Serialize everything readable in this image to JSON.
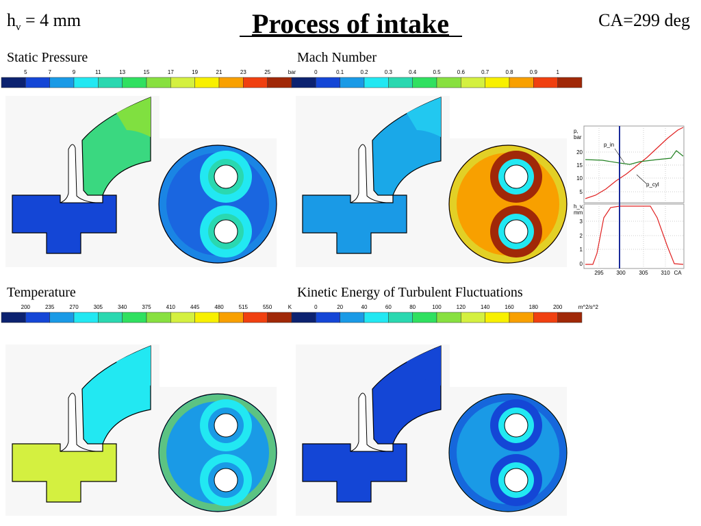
{
  "header": {
    "valve_lift_symbol": "h",
    "valve_lift_subscript": "v",
    "valve_lift_value": " = 4 mm",
    "title": "Process of intake",
    "crank_angle": "CA=299 deg"
  },
  "colorbar_colors": [
    "#0c2270",
    "#1446d6",
    "#1a9ae6",
    "#22e8f2",
    "#2ad8b0",
    "#30e060",
    "#88e040",
    "#d4f040",
    "#f8f000",
    "#f8a000",
    "#f04010",
    "#a02808"
  ],
  "panels": [
    {
      "title": "Static Pressure",
      "ticks": [
        "5",
        "7",
        "9",
        "11",
        "13",
        "15",
        "17",
        "19",
        "21",
        "23",
        "25"
      ],
      "unit": "bar"
    },
    {
      "title": "Mach Number",
      "ticks": [
        "0",
        "0.1",
        "0.2",
        "0.3",
        "0.4",
        "0.5",
        "0.6",
        "0.7",
        "0.8",
        "0.9",
        "1"
      ]
    },
    {
      "title": "Temperature",
      "ticks": [
        "200",
        "235",
        "270",
        "305",
        "340",
        "375",
        "410",
        "445",
        "480",
        "515",
        "550"
      ],
      "unit": "K"
    },
    {
      "title": "Kinetic Energy of Turbulent Fluctuations",
      "ticks": [
        "0",
        "20",
        "40",
        "60",
        "80",
        "100",
        "120",
        "140",
        "160",
        "180",
        "200"
      ],
      "unit": "m^2/s^2"
    }
  ],
  "inset": {
    "pressure_axis": [
      "p,",
      "bar"
    ],
    "pressure_ticks": [
      "20",
      "15",
      "10",
      "5"
    ],
    "p_in_label": "p_in",
    "p_cyl_label": "p_cyl",
    "lift_axis": [
      "h_v,",
      "mm"
    ],
    "lift_ticks": [
      "3",
      "2",
      "1",
      "0"
    ],
    "x_ticks": [
      "295",
      "300",
      "305",
      "310"
    ],
    "x_label": "CA"
  }
}
